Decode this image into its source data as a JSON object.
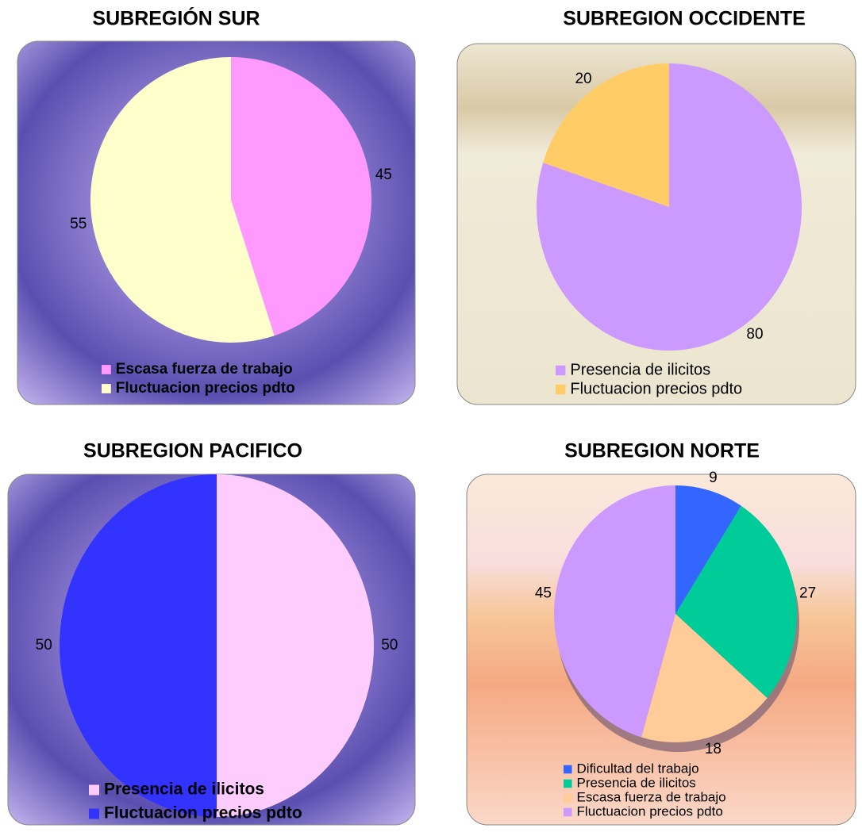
{
  "chart_data": [
    {
      "type": "pie",
      "title": "SUBREGIÓN SUR",
      "categories": [
        "Escasa fuerza de trabajo",
        "Fluctuacion precios pdto"
      ],
      "values": [
        45,
        55
      ],
      "colors": [
        "#ff99ff",
        "#ffffcc"
      ]
    },
    {
      "type": "pie",
      "title": "SUBREGION  OCCIDENTE",
      "categories": [
        "Presencia de ilicitos",
        "Fluctuacion precios pdto"
      ],
      "values": [
        80,
        20
      ],
      "colors": [
        "#cc99ff",
        "#ffcc66"
      ]
    },
    {
      "type": "pie",
      "title": "SUBREGION PACIFICO",
      "categories": [
        "Presencia de ilicitos",
        "Fluctuacion precios pdto"
      ],
      "values": [
        50,
        50
      ],
      "colors": [
        "#ffccff",
        "#3333ff"
      ]
    },
    {
      "type": "pie",
      "title": "SUBREGION NORTE",
      "categories": [
        "Dificultad del trabajo",
        "Presencia de ilicitos",
        "Escasa fuerza de trabajo",
        "Fluctuacion precios pdto"
      ],
      "values": [
        9,
        27,
        18,
        45
      ],
      "colors": [
        "#3366ff",
        "#00cc99",
        "#ffcc99",
        "#cc99ff"
      ]
    }
  ]
}
